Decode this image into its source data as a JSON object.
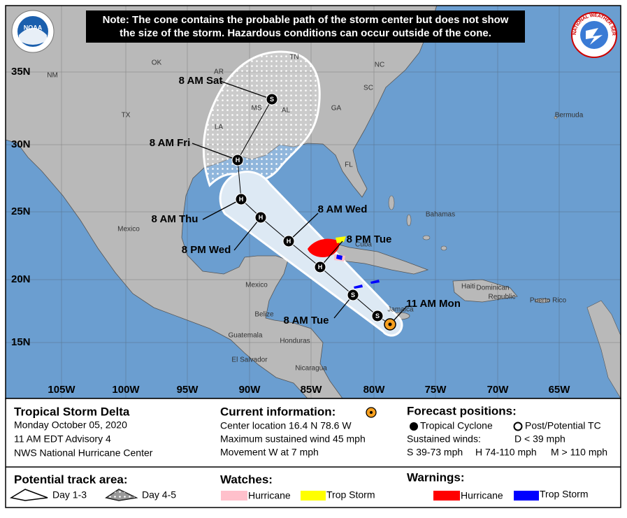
{
  "note": [
    "Note: The cone contains the probable path of the storm center but does not show",
    "the size of the storm. Hazardous conditions can occur outside of the cone."
  ],
  "logos": {
    "noaa": "NOAA",
    "nws": "NATIONAL WEATHER SERVICE"
  },
  "map": {
    "latitudes": [
      "35N",
      "30N",
      "25N",
      "20N",
      "15N"
    ],
    "longitudes": [
      "105W",
      "100W",
      "95W",
      "90W",
      "85W",
      "80W",
      "75W",
      "70W",
      "65W"
    ],
    "places": [
      "NM",
      "OK",
      "AR",
      "TN",
      "NC",
      "TX",
      "MS",
      "AL",
      "SC",
      "GA",
      "LA",
      "FL",
      "Bermuda",
      "Mexico",
      "Bahamas",
      "Cuba",
      "Mexico",
      "Belize",
      "Haiti",
      "Dominican",
      "Republic",
      "Puerto Rico",
      "Jamaica",
      "Guatemala",
      "Honduras",
      "El Salvador",
      "Nicaragua"
    ],
    "forecast_labels": [
      "8 AM Sat",
      "8 AM Fri",
      "8 AM Thu",
      "8 PM Wed",
      "8 AM Wed",
      "8 PM Tue",
      "8 AM Tue",
      "11 AM Mon"
    ],
    "track_points": [
      "S",
      "H",
      "H",
      "H",
      "H",
      "H",
      "S",
      "S"
    ]
  },
  "storm": {
    "name": "Tropical Storm Delta",
    "date": "Monday October 05, 2020",
    "advisory": "11 AM EDT Advisory 4",
    "source": "NWS National Hurricane Center"
  },
  "current": {
    "title": "Current information:",
    "lines": [
      "Center location 16.4 N 78.6 W",
      "Maximum sustained wind 45 mph",
      "Movement W at 7 mph"
    ]
  },
  "forecast": {
    "title": "Forecast positions:",
    "items": [
      "Tropical Cyclone",
      "Post/Potential TC"
    ],
    "winds_title": "Sustained winds:",
    "d": "D < 39 mph",
    "s": "S 39-73 mph",
    "h": "H 74-110 mph",
    "m": "M > 110 mph"
  },
  "track_area": {
    "title": "Potential track area:",
    "items": [
      "Day 1-3",
      "Day 4-5"
    ]
  },
  "watches": {
    "title": "Watches:",
    "items": [
      "Hurricane",
      "Trop Storm"
    ]
  },
  "warnings": {
    "title": "Warnings:",
    "items": [
      "Hurricane",
      "Trop Storm"
    ]
  }
}
